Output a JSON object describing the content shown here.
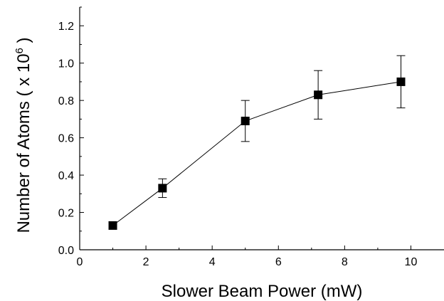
{
  "chart_data": {
    "type": "line",
    "title": "",
    "xlabel": "Slower Beam Power (mW)",
    "ylabel_main": "Number of Atoms ( x 10",
    "ylabel_exp": "6",
    "ylabel_end": " )",
    "xlim": [
      0,
      11
    ],
    "ylim": [
      0,
      1.3
    ],
    "xticks": [
      0,
      2,
      4,
      6,
      8,
      10
    ],
    "xtick_labels": [
      "0",
      "2",
      "4",
      "6",
      "8",
      "10"
    ],
    "yticks": [
      0.0,
      0.2,
      0.4,
      0.6,
      0.8,
      1.0,
      1.2
    ],
    "ytick_labels": [
      "0.0",
      "0.2",
      "0.4",
      "0.6",
      "0.8",
      "1.0",
      "1.2"
    ],
    "grid": false,
    "legend": "none",
    "series": [
      {
        "marker": "filled-square",
        "color": "#000000",
        "x": [
          1.0,
          2.5,
          5.0,
          7.2,
          9.7
        ],
        "y": [
          0.13,
          0.33,
          0.69,
          0.83,
          0.9
        ],
        "err_low": [
          0.02,
          0.05,
          0.11,
          0.13,
          0.14
        ],
        "err_high": [
          0.02,
          0.05,
          0.11,
          0.13,
          0.14
        ]
      }
    ]
  }
}
